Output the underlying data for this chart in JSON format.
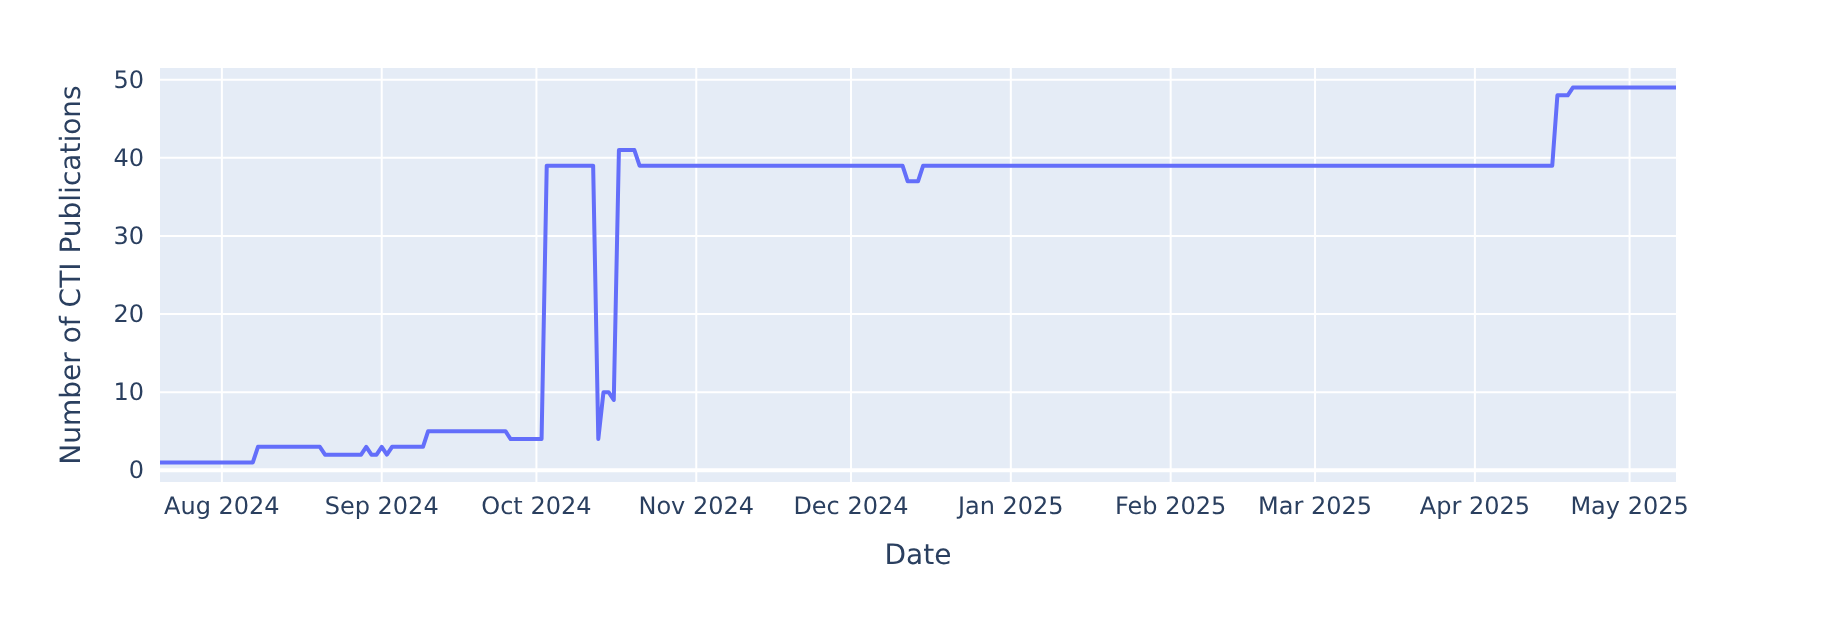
{
  "chart_data": {
    "type": "line",
    "xlabel": "Date",
    "ylabel": "Number of CTI Publications",
    "x": [
      "2024-07-20",
      "2024-08-07",
      "2024-08-08",
      "2024-08-20",
      "2024-08-21",
      "2024-08-28",
      "2024-08-29",
      "2024-08-30",
      "2024-08-31",
      "2024-09-01",
      "2024-09-02",
      "2024-09-03",
      "2024-09-09",
      "2024-09-10",
      "2024-09-25",
      "2024-09-26",
      "2024-10-02",
      "2024-10-03",
      "2024-10-12",
      "2024-10-13",
      "2024-10-14",
      "2024-10-15",
      "2024-10-16",
      "2024-10-17",
      "2024-10-20",
      "2024-10-21",
      "2024-12-11",
      "2024-12-12",
      "2024-12-14",
      "2024-12-15",
      "2025-04-16",
      "2025-04-17",
      "2025-04-19",
      "2025-04-20",
      "2025-05-10"
    ],
    "series": [
      {
        "color": "#636efa",
        "values": [
          1,
          1,
          3,
          3,
          2,
          2,
          3,
          2,
          2,
          3,
          2,
          3,
          3,
          5,
          5,
          4,
          4,
          39,
          39,
          4,
          10,
          10,
          9,
          41,
          41,
          39,
          39,
          37,
          37,
          39,
          39,
          48,
          48,
          49,
          49
        ]
      }
    ],
    "xlim": [
      "2024-07-20",
      "2025-05-10"
    ],
    "xticks": [
      {
        "value": "2024-08-01",
        "label": "Aug 2024"
      },
      {
        "value": "2024-09-01",
        "label": "Sep 2024"
      },
      {
        "value": "2024-10-01",
        "label": "Oct 2024"
      },
      {
        "value": "2024-11-01",
        "label": "Nov 2024"
      },
      {
        "value": "2024-12-01",
        "label": "Dec 2024"
      },
      {
        "value": "2025-01-01",
        "label": "Jan 2025"
      },
      {
        "value": "2025-02-01",
        "label": "Feb 2025"
      },
      {
        "value": "2025-03-01",
        "label": "Mar 2025"
      },
      {
        "value": "2025-04-01",
        "label": "Apr 2025"
      },
      {
        "value": "2025-05-01",
        "label": "May 2025"
      }
    ],
    "ylim": [
      -1.5,
      51.5
    ],
    "yticks": [
      0,
      10,
      20,
      30,
      40,
      50
    ],
    "grid": true,
    "line_style": "solid",
    "marker": "none"
  }
}
